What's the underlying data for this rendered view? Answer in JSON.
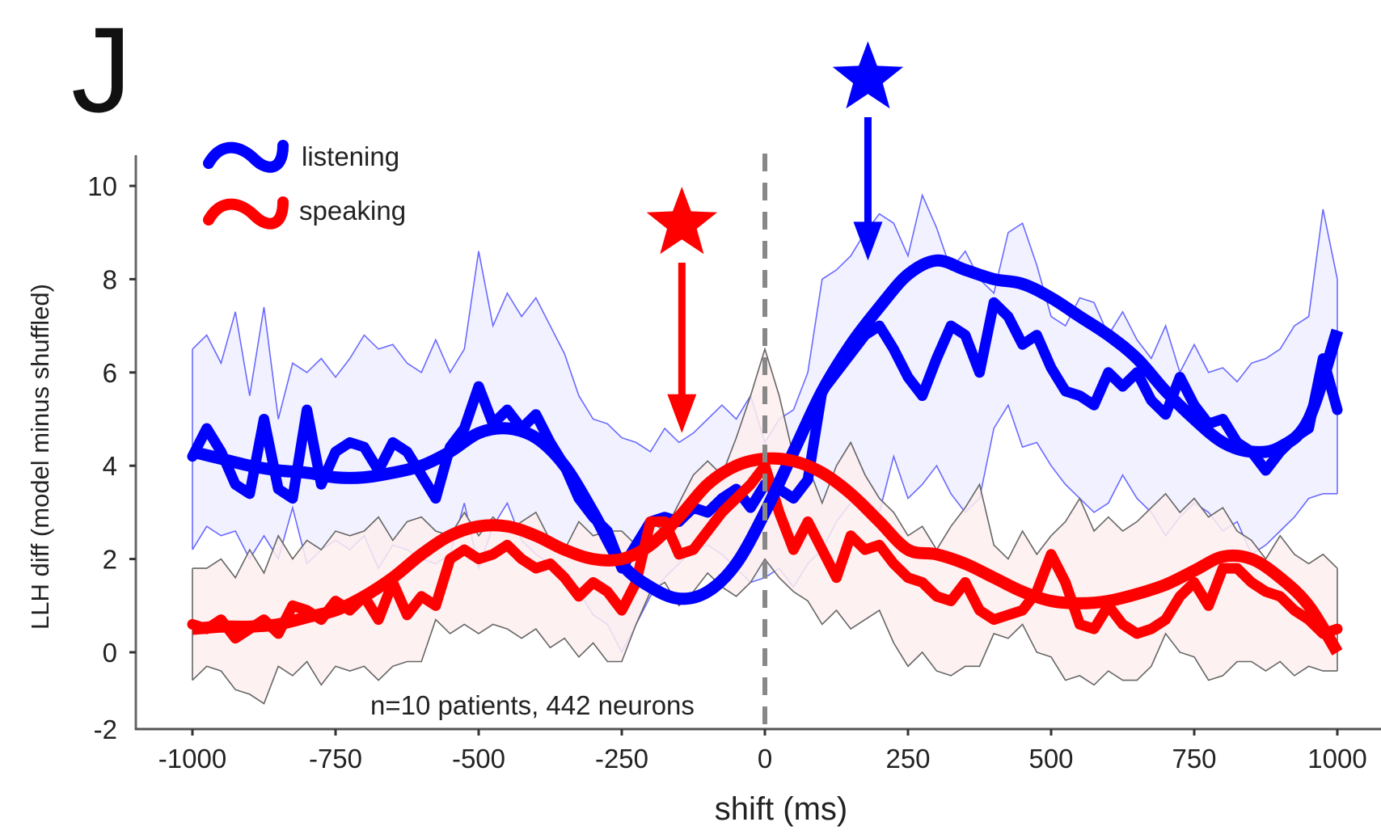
{
  "panel_label": "J",
  "chart_data": {
    "type": "line",
    "title": "",
    "xlabel": "shift (ms)",
    "ylabel": "LLH diff (model minus shuffled)",
    "xlim": [
      -1000,
      1000
    ],
    "ylim": [
      -2,
      10
    ],
    "xticks": [
      -1000,
      -750,
      -500,
      -250,
      0,
      250,
      500,
      750,
      1000
    ],
    "xtick_labels": [
      "-1000",
      "-750",
      "-500",
      "-250",
      "0",
      "250",
      "500",
      "750",
      "1000"
    ],
    "yticks": [
      10,
      8,
      6,
      4,
      2,
      0,
      -2
    ],
    "ytick_labels": [
      "10",
      "8",
      "6",
      "4",
      "2",
      "0",
      "-2"
    ],
    "grid": false,
    "legend": {
      "placement": "top-left",
      "entries": [
        {
          "label": "listening",
          "color": "#0000ff"
        },
        {
          "label": "speaking",
          "color": "#ff0000"
        }
      ]
    },
    "annotation": "n=10 patients, 442 neurons",
    "reference_line": {
      "x": 0,
      "style": "dashed",
      "color": "#888888"
    },
    "markers": [
      {
        "series": "speaking",
        "symbol": "star",
        "arrow_to_x": -145,
        "arrow_to_y": 4.7,
        "color": "#ff0000"
      },
      {
        "series": "listening",
        "symbol": "star",
        "arrow_to_x": 180,
        "arrow_to_y": 8.4,
        "color": "#0000ff"
      }
    ],
    "colors": {
      "listening": "#0000ff",
      "listening_band": "#eeeeff",
      "listening_band_edge": "#6a6aff",
      "speaking": "#ff0000",
      "speaking_band": "#fdeeee",
      "speaking_band_edge": "#666666"
    },
    "x_smooth": [
      -1000,
      -950,
      -900,
      -850,
      -800,
      -750,
      -700,
      -650,
      -600,
      -550,
      -500,
      -450,
      -400,
      -350,
      -300,
      -250,
      -200,
      -150,
      -100,
      -50,
      0,
      50,
      100,
      150,
      200,
      250,
      300,
      350,
      400,
      450,
      500,
      550,
      600,
      650,
      700,
      750,
      800,
      850,
      900,
      950,
      1000
    ],
    "x_raw": [
      -1000,
      -975,
      -950,
      -925,
      -900,
      -875,
      -850,
      -825,
      -800,
      -775,
      -750,
      -725,
      -700,
      -675,
      -650,
      -625,
      -600,
      -575,
      -550,
      -525,
      -500,
      -475,
      -450,
      -425,
      -400,
      -375,
      -350,
      -325,
      -300,
      -275,
      -250,
      -225,
      -200,
      -175,
      -150,
      -125,
      -100,
      -75,
      -50,
      -25,
      0,
      25,
      50,
      75,
      100,
      125,
      150,
      175,
      200,
      225,
      250,
      275,
      300,
      325,
      350,
      375,
      400,
      425,
      450,
      475,
      500,
      525,
      550,
      575,
      600,
      625,
      650,
      675,
      700,
      725,
      750,
      775,
      800,
      825,
      850,
      875,
      900,
      925,
      950,
      975,
      1000
    ],
    "series": [
      {
        "name": "listening",
        "smooth": [
          4.3,
          4.15,
          4.0,
          3.9,
          3.85,
          3.75,
          3.75,
          3.85,
          4.0,
          4.3,
          4.7,
          4.8,
          4.6,
          4.0,
          3.0,
          1.9,
          1.4,
          1.15,
          1.3,
          1.9,
          3.0,
          4.3,
          5.6,
          6.6,
          7.4,
          8.1,
          8.4,
          8.2,
          8.0,
          7.9,
          7.6,
          7.2,
          6.8,
          6.3,
          5.6,
          5.0,
          4.5,
          4.3,
          4.4,
          5.0,
          6.9
        ],
        "raw": [
          4.2,
          4.8,
          4.3,
          3.6,
          3.4,
          5.0,
          3.5,
          3.3,
          5.2,
          3.6,
          4.3,
          4.5,
          4.4,
          3.9,
          4.5,
          4.3,
          3.8,
          3.3,
          4.4,
          4.8,
          5.7,
          4.9,
          5.2,
          4.8,
          5.1,
          4.5,
          4.0,
          3.3,
          2.9,
          2.6,
          1.8,
          2.3,
          2.8,
          2.9,
          2.8,
          3.1,
          3.0,
          3.3,
          3.5,
          3.1,
          3.6,
          3.5,
          3.3,
          3.7,
          5.6,
          6.0,
          6.4,
          6.8,
          7.0,
          6.5,
          5.9,
          5.5,
          6.3,
          7.0,
          6.8,
          6.0,
          7.5,
          7.2,
          6.6,
          6.8,
          6.1,
          5.6,
          5.5,
          5.3,
          6.0,
          5.7,
          6.0,
          5.4,
          5.1,
          5.9,
          5.3,
          4.9,
          5.0,
          4.5,
          4.3,
          3.9,
          4.3,
          4.6,
          4.8,
          6.3,
          5.2
        ],
        "ci_upper": [
          6.5,
          6.8,
          6.2,
          7.3,
          5.5,
          7.4,
          5.0,
          6.2,
          6.0,
          6.3,
          5.9,
          6.3,
          6.8,
          6.5,
          6.6,
          6.2,
          6.0,
          6.7,
          6.0,
          6.5,
          8.6,
          7.0,
          7.7,
          7.2,
          7.6,
          7.0,
          6.4,
          5.5,
          5.0,
          4.9,
          4.6,
          4.5,
          4.3,
          4.8,
          4.5,
          4.7,
          5.0,
          5.3,
          5.0,
          5.5,
          4.5,
          5.0,
          5.2,
          6.0,
          8.0,
          8.2,
          8.5,
          9.0,
          9.4,
          9.2,
          8.5,
          9.8,
          9.1,
          8.2,
          8.6,
          8.0,
          7.7,
          9.0,
          9.2,
          8.3,
          7.2,
          7.0,
          7.6,
          7.5,
          6.8,
          7.3,
          6.7,
          6.3,
          7.0,
          6.0,
          6.6,
          6.0,
          6.1,
          5.8,
          6.2,
          6.3,
          6.5,
          7.0,
          7.2,
          9.5,
          8.0
        ],
        "ci_lower": [
          2.2,
          2.7,
          2.5,
          2.6,
          2.0,
          2.5,
          2.0,
          3.1,
          1.9,
          2.2,
          2.4,
          2.2,
          2.5,
          1.8,
          2.3,
          2.2,
          2.0,
          1.9,
          2.1,
          3.2,
          1.8,
          2.7,
          3.2,
          2.4,
          2.1,
          1.9,
          1.6,
          1.3,
          0.8,
          0.6,
          0.0,
          0.6,
          1.2,
          1.6,
          1.9,
          2.2,
          2.3,
          2.1,
          1.8,
          1.5,
          1.6,
          1.8,
          1.4,
          1.9,
          2.2,
          2.8,
          3.2,
          3.3,
          3.0,
          4.2,
          3.3,
          3.6,
          4.0,
          3.4,
          3.0,
          3.3,
          4.8,
          5.3,
          4.4,
          4.5,
          4.0,
          3.6,
          3.3,
          3.0,
          3.2,
          3.8,
          3.3,
          3.0,
          2.5,
          2.9,
          3.2,
          3.0,
          2.6,
          2.8,
          2.1,
          2.3,
          2.6,
          2.9,
          3.3,
          3.4,
          3.4
        ]
      },
      {
        "name": "speaking",
        "smooth": [
          0.5,
          0.55,
          0.55,
          0.6,
          0.75,
          0.9,
          1.2,
          1.6,
          2.1,
          2.5,
          2.7,
          2.7,
          2.5,
          2.2,
          2.0,
          2.0,
          2.3,
          2.9,
          3.6,
          4.0,
          4.15,
          4.1,
          3.85,
          3.4,
          2.8,
          2.2,
          2.1,
          1.9,
          1.6,
          1.3,
          1.1,
          1.05,
          1.1,
          1.25,
          1.45,
          1.75,
          2.05,
          2.0,
          1.6,
          1.0,
          0.0
        ],
        "raw": [
          0.6,
          0.5,
          0.7,
          0.3,
          0.5,
          0.7,
          0.4,
          1.0,
          0.9,
          0.7,
          1.1,
          0.9,
          1.2,
          0.7,
          1.5,
          0.8,
          1.2,
          1.0,
          2.0,
          2.2,
          2.0,
          2.1,
          2.3,
          2.0,
          1.8,
          1.9,
          1.6,
          1.2,
          1.5,
          1.3,
          0.9,
          1.5,
          2.8,
          2.8,
          2.1,
          2.2,
          2.6,
          3.0,
          3.3,
          3.6,
          4.0,
          3.0,
          2.2,
          2.8,
          2.2,
          1.6,
          2.5,
          2.2,
          2.3,
          1.9,
          1.6,
          1.5,
          1.2,
          1.1,
          1.5,
          0.9,
          0.7,
          0.8,
          0.9,
          1.3,
          2.1,
          1.5,
          0.6,
          0.5,
          1.0,
          0.6,
          0.4,
          0.5,
          0.7,
          1.2,
          1.5,
          1.0,
          1.8,
          1.8,
          1.5,
          1.3,
          1.2,
          0.9,
          0.7,
          0.4,
          0.5
        ],
        "ci_upper": [
          1.8,
          1.8,
          2.0,
          1.6,
          2.2,
          1.7,
          2.5,
          2.0,
          2.4,
          2.2,
          2.6,
          2.5,
          2.6,
          2.9,
          2.4,
          2.8,
          2.9,
          2.6,
          2.5,
          3.0,
          2.5,
          2.9,
          2.6,
          2.8,
          3.0,
          2.4,
          2.2,
          2.8,
          2.5,
          2.6,
          2.6,
          2.3,
          2.8,
          2.6,
          3.2,
          3.8,
          4.1,
          3.8,
          4.6,
          5.5,
          6.5,
          5.5,
          4.2,
          4.0,
          3.2,
          4.0,
          4.5,
          3.8,
          3.3,
          3.0,
          2.5,
          2.7,
          2.2,
          2.7,
          3.1,
          3.6,
          2.3,
          2.0,
          2.6,
          2.1,
          2.5,
          2.8,
          3.3,
          2.6,
          2.9,
          2.6,
          2.8,
          3.1,
          3.4,
          3.0,
          3.3,
          2.9,
          3.1,
          2.6,
          2.4,
          2.0,
          2.5,
          2.1,
          1.9,
          2.1,
          1.8
        ],
        "ci_lower": [
          -0.6,
          -0.3,
          -0.4,
          -0.8,
          -0.9,
          -1.1,
          -0.3,
          -0.5,
          -0.2,
          -0.7,
          -0.3,
          -0.4,
          -0.3,
          -0.6,
          -0.3,
          -0.2,
          -0.2,
          0.7,
          0.4,
          0.6,
          0.4,
          0.6,
          0.5,
          0.3,
          0.5,
          0.1,
          0.3,
          -0.1,
          0.2,
          -0.2,
          -0.2,
          0.6,
          1.3,
          1.5,
          1.0,
          1.3,
          1.7,
          1.4,
          1.2,
          1.5,
          2.0,
          1.6,
          1.3,
          1.1,
          0.6,
          0.9,
          0.5,
          0.7,
          0.9,
          0.2,
          -0.3,
          0.0,
          -0.4,
          -0.5,
          -0.3,
          -0.3,
          0.4,
          0.3,
          0.6,
          0.0,
          -0.1,
          -0.6,
          -0.5,
          -0.7,
          -0.4,
          -0.6,
          -0.6,
          -0.3,
          0.4,
          0.0,
          -0.1,
          -0.6,
          -0.5,
          -0.2,
          -0.2,
          -0.4,
          -0.2,
          -0.5,
          -0.3,
          -0.4,
          -0.4
        ]
      }
    ]
  }
}
